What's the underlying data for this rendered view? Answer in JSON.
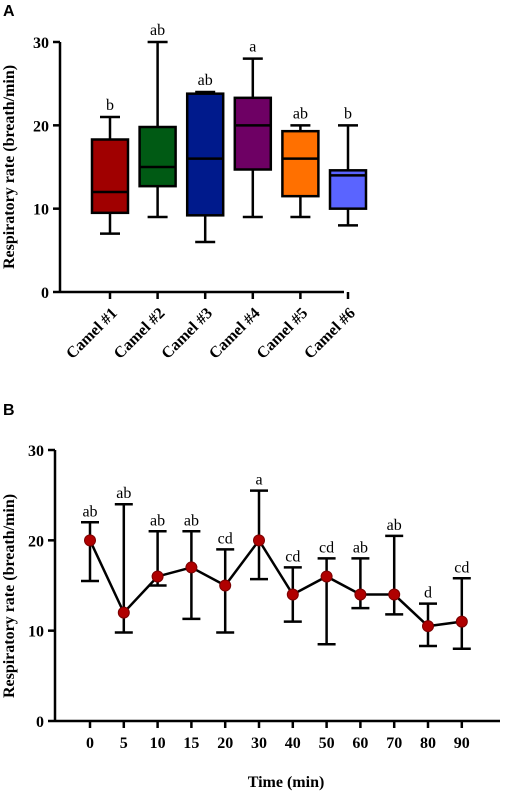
{
  "chart_data": [
    {
      "panel": "A",
      "type": "box",
      "ylabel": "Respiratory rate (breath/min)",
      "ylim": [
        0,
        30
      ],
      "yticks": [
        0,
        10,
        20,
        30
      ],
      "categories": [
        "Camel #1",
        "Camel #2",
        "Camel #3",
        "Camel #4",
        "Camel #5",
        "Camel #6"
      ],
      "boxes": [
        {
          "min": 7,
          "q1": 9.5,
          "median": 12,
          "q3": 18.3,
          "max": 21,
          "sig": "b",
          "color": "#a00000"
        },
        {
          "min": 9,
          "q1": 12.7,
          "median": 15,
          "q3": 19.8,
          "max": 30,
          "sig": "ab",
          "color": "#005a14"
        },
        {
          "min": 6,
          "q1": 9.2,
          "median": 16,
          "q3": 23.8,
          "max": 24,
          "sig": "ab",
          "color": "#001a8c"
        },
        {
          "min": 9,
          "q1": 14.7,
          "median": 20,
          "q3": 23.3,
          "max": 28,
          "sig": "a",
          "color": "#6e0064"
        },
        {
          "min": 9,
          "q1": 11.5,
          "median": 16,
          "q3": 19.3,
          "max": 20,
          "sig": "ab",
          "color": "#ff7000"
        },
        {
          "min": 8,
          "q1": 10,
          "median": 14,
          "q3": 14.6,
          "max": 20,
          "sig": "b",
          "color": "#5a64ff"
        }
      ]
    },
    {
      "panel": "B",
      "type": "line",
      "xlabel": "Time (min)",
      "ylabel": "Respiratory rate (breath/min)",
      "ylim": [
        0,
        30
      ],
      "yticks": [
        0,
        10,
        20,
        30
      ],
      "x": [
        0,
        5,
        10,
        15,
        20,
        30,
        40,
        50,
        60,
        70,
        80,
        90
      ],
      "values": [
        20,
        12,
        16,
        17,
        15,
        20,
        14,
        16,
        14,
        14,
        10.5,
        11
      ],
      "err_upper": [
        22,
        24,
        21,
        21,
        19,
        25.5,
        17,
        18,
        18,
        20.5,
        13,
        15.8
      ],
      "err_lower": [
        15.5,
        9.8,
        15,
        11.3,
        9.8,
        15.7,
        11,
        8.5,
        12.5,
        11.8,
        8.3,
        8
      ],
      "sig": [
        "ab",
        "ab",
        "ab",
        "ab",
        "cd",
        "a",
        "cd",
        "cd",
        "ab",
        "ab",
        "d",
        "cd"
      ],
      "marker_color": "#b00000"
    }
  ]
}
